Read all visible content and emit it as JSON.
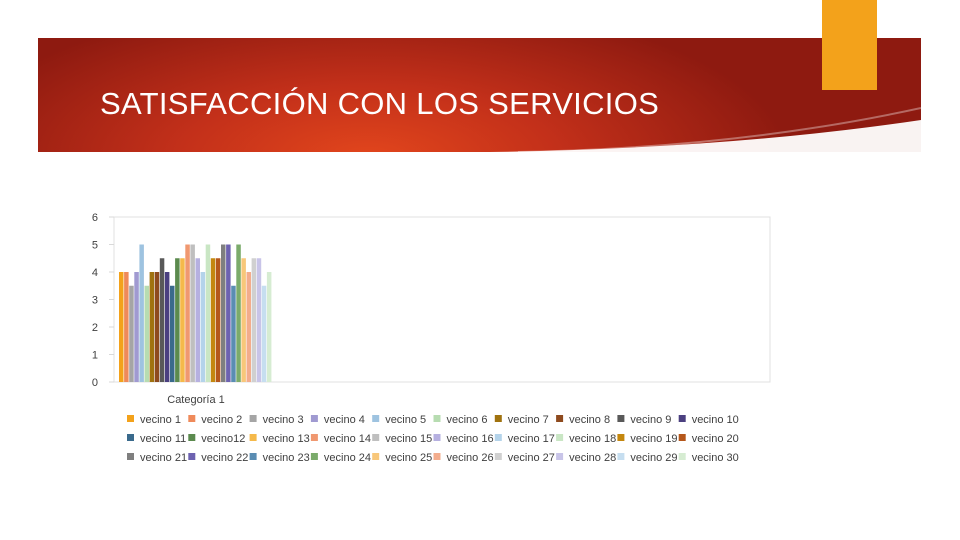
{
  "slide": {
    "title": "SATISFACCIÓN CON LOS SERVICIOS",
    "colors": {
      "banner": "#c3301a",
      "accent": "#f3a21b"
    }
  },
  "chart_data": {
    "type": "bar",
    "categories": [
      "Categoría 1"
    ],
    "ylim": [
      0,
      6
    ],
    "yticks": [
      0,
      1,
      2,
      3,
      4,
      5,
      6
    ],
    "grid": false,
    "legend_position": "bottom",
    "series": [
      {
        "name": "vecino 1",
        "values": [
          4
        ],
        "color": "#f3a21b"
      },
      {
        "name": "vecino 2",
        "values": [
          4
        ],
        "color": "#ef8a5a"
      },
      {
        "name": "vecino 3",
        "values": [
          3.5
        ],
        "color": "#a5a5a5"
      },
      {
        "name": "vecino 4",
        "values": [
          4
        ],
        "color": "#a09ad1"
      },
      {
        "name": "vecino 5",
        "values": [
          5
        ],
        "color": "#9ec3e0"
      },
      {
        "name": "vecino 6",
        "values": [
          3.5
        ],
        "color": "#b7dcb1"
      },
      {
        "name": "vecino 7",
        "values": [
          4
        ],
        "color": "#a0720f"
      },
      {
        "name": "vecino 8",
        "values": [
          4
        ],
        "color": "#8e4a1e"
      },
      {
        "name": "vecino 9",
        "values": [
          4.5
        ],
        "color": "#595959"
      },
      {
        "name": "vecino 10",
        "values": [
          4
        ],
        "color": "#4b4080"
      },
      {
        "name": "vecino 11",
        "values": [
          3.5
        ],
        "color": "#3a6a8c"
      },
      {
        "name": "vecino12",
        "values": [
          4.5
        ],
        "color": "#5b8a4e"
      },
      {
        "name": "vecino 13",
        "values": [
          4.5
        ],
        "color": "#f5b94a"
      },
      {
        "name": "vecino 14",
        "values": [
          5
        ],
        "color": "#f09870"
      },
      {
        "name": "vecino 15",
        "values": [
          5
        ],
        "color": "#bfbfbf"
      },
      {
        "name": "vecino 16",
        "values": [
          4.5
        ],
        "color": "#b6b0e0"
      },
      {
        "name": "vecino 17",
        "values": [
          4
        ],
        "color": "#b4d3ea"
      },
      {
        "name": "vecino 18",
        "values": [
          5
        ],
        "color": "#c9e6c4"
      },
      {
        "name": "vecino 19",
        "values": [
          4.5
        ],
        "color": "#c4870f"
      },
      {
        "name": "vecino 20",
        "values": [
          4.5
        ],
        "color": "#b5571b"
      },
      {
        "name": "vecino 21",
        "values": [
          5
        ],
        "color": "#7f7f7f"
      },
      {
        "name": "vecino 22",
        "values": [
          5
        ],
        "color": "#6d62b0"
      },
      {
        "name": "vecino 23",
        "values": [
          3.5
        ],
        "color": "#5a8db3"
      },
      {
        "name": "vecino 24",
        "values": [
          5
        ],
        "color": "#7bab6b"
      },
      {
        "name": "vecino 25",
        "values": [
          4.5
        ],
        "color": "#f8c77a"
      },
      {
        "name": "vecino 26",
        "values": [
          4
        ],
        "color": "#f3ac8c"
      },
      {
        "name": "vecino 27",
        "values": [
          4.5
        ],
        "color": "#d0d0d0"
      },
      {
        "name": "vecino 28",
        "values": [
          4.5
        ],
        "color": "#c8c4e8"
      },
      {
        "name": "vecino 29",
        "values": [
          3.5
        ],
        "color": "#c6def0"
      },
      {
        "name": "vecino 30",
        "values": [
          4
        ],
        "color": "#d6ecd2"
      }
    ]
  }
}
